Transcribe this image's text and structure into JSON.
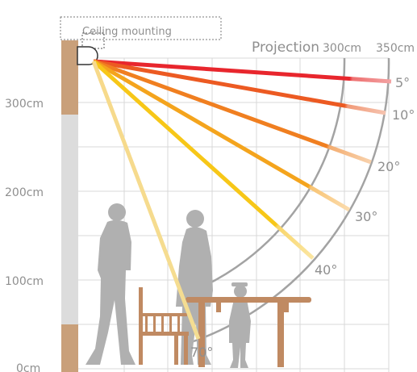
{
  "mounting_label": "Ceiling mounting",
  "projection_label": "Projection",
  "distance_labels": [
    "300cm",
    "350cm"
  ],
  "height_labels": [
    "300cm",
    "200cm",
    "100cm",
    "0cm"
  ],
  "angle_labels": [
    "5°",
    "10°",
    "20°",
    "30°",
    "40°",
    "70°"
  ],
  "beams": [
    {
      "angle": 5,
      "color": "#e8262d"
    },
    {
      "angle": 10,
      "color": "#ec5a22"
    },
    {
      "angle": 20,
      "color": "#f07f20"
    },
    {
      "angle": 30,
      "color": "#f4a41d"
    },
    {
      "angle": 40,
      "color": "#f7c718"
    },
    {
      "angle": 70,
      "color": "#f3dc8a"
    }
  ],
  "colors": {
    "grid": "#d9d9d9",
    "arc": "#a3a3a3",
    "wall_wood": "#c9a07a",
    "wall_gray": "#dcdcdc",
    "silhouette": "#b0b0b0",
    "furniture": "#c08a62",
    "label": "#8f8f8f"
  }
}
